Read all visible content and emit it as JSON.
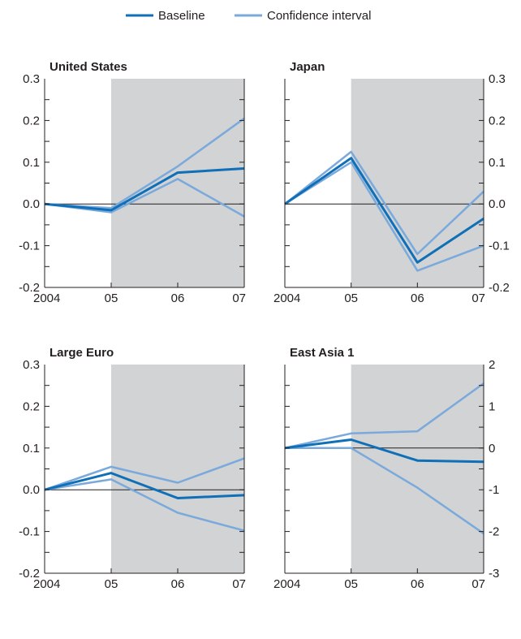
{
  "legend": {
    "items": [
      {
        "label": "Baseline",
        "color": "#0f6fb7"
      },
      {
        "label": "Confidence interval",
        "color": "#7aa9dc"
      }
    ]
  },
  "colors": {
    "baseline": "#0f6fb7",
    "confidence": "#7aa9dc",
    "forecast_shade": "#d1d3d4",
    "axis": "#231f20"
  },
  "chart_data": [
    {
      "type": "line",
      "title": "United States",
      "categories": [
        "2004",
        "05",
        "06",
        "07"
      ],
      "forecast_shaded_from": "05",
      "ylim": [
        -0.2,
        0.3
      ],
      "yticks": [
        -0.2,
        -0.1,
        0.0,
        0.1,
        0.2,
        0.3
      ],
      "ytick_labels": [
        "-0.2",
        "-0.1",
        "0.0",
        "0.1",
        "0.2",
        "0.3"
      ],
      "y_axis_side": "left",
      "series": [
        {
          "name": "Baseline",
          "values": [
            0.0,
            -0.015,
            0.075,
            0.085
          ]
        },
        {
          "name": "Confidence interval",
          "values": [
            0.0,
            -0.01,
            0.09,
            0.205
          ]
        },
        {
          "name": "Confidence interval",
          "values": [
            0.0,
            -0.02,
            0.06,
            -0.03
          ]
        }
      ]
    },
    {
      "type": "line",
      "title": "Japan",
      "categories": [
        "2004",
        "05",
        "06",
        "07"
      ],
      "forecast_shaded_from": "05",
      "ylim": [
        -0.2,
        0.3
      ],
      "yticks": [
        -0.2,
        -0.1,
        0.0,
        0.1,
        0.2,
        0.3
      ],
      "ytick_labels": [
        "-0.2",
        "-0.1",
        "0.0",
        "0.1",
        "0.2",
        "0.3"
      ],
      "y_axis_side": "right",
      "series": [
        {
          "name": "Baseline",
          "values": [
            0.0,
            0.11,
            -0.14,
            -0.035
          ]
        },
        {
          "name": "Confidence interval",
          "values": [
            0.0,
            0.125,
            -0.12,
            0.03
          ]
        },
        {
          "name": "Confidence interval",
          "values": [
            0.0,
            0.1,
            -0.16,
            -0.1
          ]
        }
      ]
    },
    {
      "type": "line",
      "title": "Large Euro",
      "categories": [
        "2004",
        "05",
        "06",
        "07"
      ],
      "forecast_shaded_from": "05",
      "ylim": [
        -0.2,
        0.3
      ],
      "yticks": [
        -0.2,
        -0.1,
        0.0,
        0.1,
        0.2,
        0.3
      ],
      "ytick_labels": [
        "-0.2",
        "-0.1",
        "0.0",
        "0.1",
        "0.2",
        "0.3"
      ],
      "y_axis_side": "left",
      "series": [
        {
          "name": "Baseline",
          "values": [
            0.0,
            0.04,
            -0.02,
            -0.013
          ]
        },
        {
          "name": "Confidence interval",
          "values": [
            0.0,
            0.055,
            0.017,
            0.075
          ]
        },
        {
          "name": "Confidence interval",
          "values": [
            0.0,
            0.025,
            -0.055,
            -0.098
          ]
        }
      ]
    },
    {
      "type": "line",
      "title": "East Asia 1",
      "categories": [
        "2004",
        "05",
        "06",
        "07"
      ],
      "forecast_shaded_from": "05",
      "ylim": [
        -3,
        2
      ],
      "yticks": [
        -3,
        -2,
        -1,
        0,
        1,
        2
      ],
      "ytick_labels": [
        "-3",
        "-2",
        "-1",
        "0",
        "1",
        "2"
      ],
      "y_axis_side": "right",
      "series": [
        {
          "name": "Baseline",
          "values": [
            0.0,
            0.2,
            -0.3,
            -0.33
          ]
        },
        {
          "name": "Confidence interval",
          "values": [
            0.0,
            0.35,
            0.4,
            1.55
          ]
        },
        {
          "name": "Confidence interval",
          "values": [
            0.0,
            0.0,
            -0.95,
            -2.05
          ]
        }
      ]
    }
  ]
}
